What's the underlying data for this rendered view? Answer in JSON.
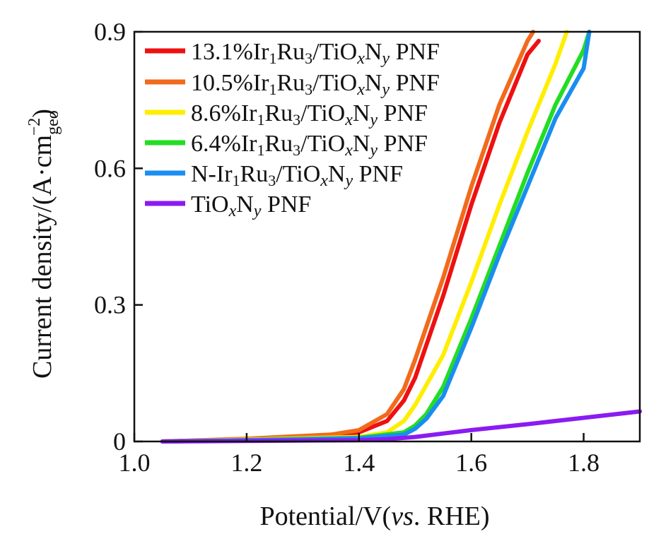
{
  "chart_data": {
    "type": "line",
    "xlabel_main": "Potential/V(",
    "xlabel_italic": "vs",
    "xlabel_tail": ". RHE)",
    "ylabel_main": "Current density/(A·cm",
    "ylabel_sub": "geo",
    "ylabel_sup": "−2",
    "ylabel_close": ")",
    "xlim": [
      1.0,
      1.9
    ],
    "ylim": [
      0,
      0.9
    ],
    "x_ticks": [
      1.0,
      1.2,
      1.4,
      1.6,
      1.8
    ],
    "x_tick_labels": [
      "1.0",
      "1.2",
      "1.4",
      "1.6",
      "1.8"
    ],
    "y_ticks": [
      0,
      0.3,
      0.6,
      0.9
    ],
    "y_tick_labels": [
      "0",
      "0.3",
      "0.6",
      "0.9"
    ],
    "series": [
      {
        "name": "13.1%Ir1Ru3/TiOxNy PNF",
        "pct": "13.1%",
        "color": "#ee1111",
        "x": [
          1.05,
          1.2,
          1.35,
          1.4,
          1.45,
          1.48,
          1.5,
          1.55,
          1.6,
          1.65,
          1.7,
          1.72
        ],
        "y": [
          0.0,
          0.005,
          0.012,
          0.02,
          0.045,
          0.09,
          0.14,
          0.32,
          0.52,
          0.7,
          0.85,
          0.88
        ]
      },
      {
        "name": "10.5%Ir1Ru3/TiOxNy PNF",
        "pct": "10.5%",
        "color": "#f26a1b",
        "x": [
          1.05,
          1.2,
          1.35,
          1.4,
          1.45,
          1.48,
          1.5,
          1.55,
          1.6,
          1.65,
          1.7,
          1.71
        ],
        "y": [
          0.0,
          0.006,
          0.015,
          0.025,
          0.06,
          0.115,
          0.18,
          0.36,
          0.56,
          0.74,
          0.88,
          0.9
        ]
      },
      {
        "name": "8.6%Ir1Ru3/TiOxNy PNF",
        "pct": "8.6%",
        "color": "#ffee00",
        "x": [
          1.05,
          1.2,
          1.4,
          1.45,
          1.48,
          1.5,
          1.55,
          1.6,
          1.65,
          1.7,
          1.75,
          1.77
        ],
        "y": [
          0.0,
          0.004,
          0.01,
          0.02,
          0.045,
          0.08,
          0.19,
          0.35,
          0.52,
          0.68,
          0.83,
          0.9
        ]
      },
      {
        "name": "6.4%Ir1Ru3/TiOxNy PNF",
        "pct": "6.4%",
        "color": "#22dd22",
        "x": [
          1.05,
          1.2,
          1.4,
          1.48,
          1.5,
          1.52,
          1.55,
          1.6,
          1.65,
          1.7,
          1.75,
          1.8,
          1.81
        ],
        "y": [
          0.0,
          0.003,
          0.008,
          0.02,
          0.035,
          0.06,
          0.12,
          0.27,
          0.43,
          0.59,
          0.74,
          0.86,
          0.9
        ]
      },
      {
        "name": "N-Ir1Ru3/TiOxNy PNF",
        "pct": "N-",
        "color": "#1a8ef0",
        "x": [
          1.05,
          1.2,
          1.4,
          1.48,
          1.5,
          1.52,
          1.55,
          1.6,
          1.65,
          1.7,
          1.75,
          1.8,
          1.81
        ],
        "y": [
          0.0,
          0.003,
          0.007,
          0.015,
          0.028,
          0.05,
          0.1,
          0.25,
          0.41,
          0.56,
          0.71,
          0.82,
          0.9
        ]
      },
      {
        "name": "TiOxNy PNF",
        "pct": "",
        "color": "#8a1bf2",
        "x": [
          1.05,
          1.4,
          1.45,
          1.5,
          1.6,
          1.7,
          1.8,
          1.9
        ],
        "y": [
          0.0,
          0.003,
          0.005,
          0.01,
          0.025,
          0.038,
          0.052,
          0.066
        ]
      }
    ]
  },
  "legend": {
    "pct_0": "13.1%",
    "pct_1": "10.5%",
    "pct_2": "8.6%",
    "pct_3": "6.4%",
    "pct_4": "N-",
    "ir": "Ir",
    "ir_sub": "1",
    "ru": "Ru",
    "ru_sub": "3",
    "tio": "/TiO",
    "x": "x",
    "n": "N",
    "y": "y",
    "pnf": " PNF",
    "tio_plain": "TiO"
  }
}
